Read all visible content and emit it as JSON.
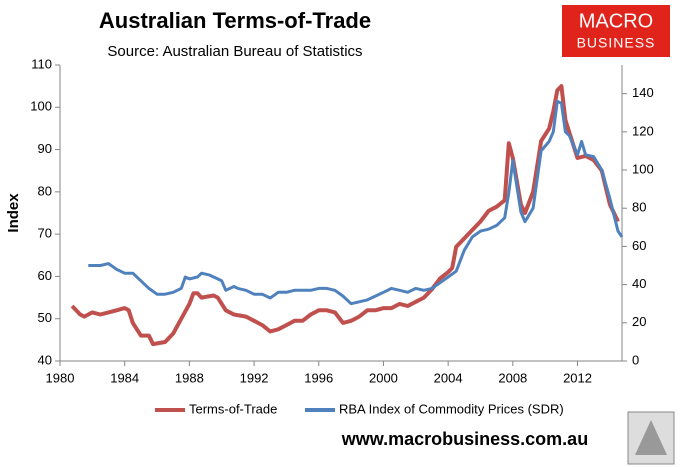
{
  "chart_data": {
    "type": "line",
    "title": "Australian Terms-of-Trade",
    "subtitle": "Source: Australian Bureau of Statistics",
    "ylabel": "Index",
    "logo": [
      "MACRO",
      "BUSINESS"
    ],
    "footer": "www.macrobusiness.com.au",
    "xlim": [
      1980,
      2014.75
    ],
    "xticks": [
      1980,
      1984,
      1988,
      1992,
      1996,
      2000,
      2004,
      2008,
      2012
    ],
    "ylim": [
      40,
      110
    ],
    "yticks": [
      40,
      50,
      60,
      70,
      80,
      90,
      100,
      110
    ],
    "y2lim": [
      0,
      155
    ],
    "y2ticks": [
      0,
      20,
      40,
      60,
      80,
      100,
      120,
      140
    ],
    "legend": "bottom",
    "series": [
      {
        "name": "Terms-of-Trade",
        "color": "#c0504d",
        "x": [
          1980.75,
          1981.25,
          1981.5,
          1982,
          1982.5,
          1983,
          1983.5,
          1984,
          1984.25,
          1984.5,
          1985,
          1985.5,
          1985.75,
          1986.5,
          1987,
          1987.5,
          1988,
          1988.25,
          1988.5,
          1988.75,
          1989.5,
          1989.75,
          1990.25,
          1990.75,
          1991.5,
          1992,
          1992.5,
          1993,
          1993.5,
          1994,
          1994.5,
          1995,
          1995.5,
          1996,
          1996.5,
          1997,
          1997.5,
          1998,
          1998.5,
          1999,
          1999.5,
          2000,
          2000.5,
          2001,
          2001.5,
          2002,
          2002.5,
          2003,
          2003.5,
          2004,
          2004.25,
          2004.5,
          2005,
          2005.5,
          2006,
          2006.5,
          2007,
          2007.5,
          2007.75,
          2008,
          2008.5,
          2008.75,
          2009.25,
          2009.75,
          2010.25,
          2010.5,
          2010.75,
          2011,
          2011.25,
          2011.5,
          2012,
          2012.5,
          2013,
          2013.5,
          2014,
          2014.5
        ],
        "values": [
          53,
          51,
          50.5,
          51.5,
          51,
          51.5,
          52,
          52.5,
          52,
          49,
          46,
          46,
          44,
          44.5,
          46.5,
          50,
          53.5,
          56,
          56,
          55,
          55.5,
          55,
          52,
          51,
          50.5,
          49.5,
          48.5,
          47,
          47.5,
          48.5,
          49.5,
          49.5,
          51,
          52,
          52,
          51.5,
          49,
          49.5,
          50.5,
          52,
          52,
          52.5,
          52.5,
          53.5,
          53,
          54,
          55,
          57,
          59.5,
          61,
          62,
          67,
          69,
          71,
          73,
          75.5,
          76.5,
          78,
          91.5,
          88,
          77,
          75,
          80,
          92,
          95,
          99,
          104,
          105,
          97,
          94,
          88,
          88.5,
          87.5,
          85,
          77,
          73
        ]
      },
      {
        "name": "RBA Index of Commodity Prices (SDR)",
        "color": "#4f81bd",
        "axis": "y2",
        "x": [
          1981.75,
          1982.5,
          1983,
          1983.5,
          1984,
          1984.5,
          1985,
          1985.5,
          1986,
          1986.5,
          1987,
          1987.5,
          1987.75,
          1988,
          1988.5,
          1988.75,
          1989.25,
          1989.75,
          1990,
          1990.25,
          1990.75,
          1991,
          1991.5,
          1992,
          1992.5,
          1993,
          1993.5,
          1994,
          1994.5,
          1995,
          1995.5,
          1996,
          1996.5,
          1997,
          1997.5,
          1998,
          1998.5,
          1999,
          1999.5,
          2000,
          2000.5,
          2001,
          2001.5,
          2002,
          2002.5,
          2003,
          2003.5,
          2004,
          2004.5,
          2005,
          2005.5,
          2006,
          2006.5,
          2007,
          2007.5,
          2007.75,
          2008,
          2008.5,
          2008.75,
          2009.25,
          2009.75,
          2010.25,
          2010.5,
          2010.75,
          2011,
          2011.25,
          2011.5,
          2012,
          2012.25,
          2012.5,
          2013,
          2013.5,
          2014,
          2014.5,
          2014.75
        ],
        "values": [
          50,
          50,
          51,
          48,
          46,
          46,
          42,
          38,
          35,
          35,
          36,
          38,
          44,
          43,
          44,
          46,
          45,
          43,
          42,
          37,
          39,
          38,
          37,
          35,
          35,
          33,
          36,
          36,
          37,
          37,
          37,
          38,
          38,
          37,
          34,
          30,
          31,
          32,
          34,
          36,
          38,
          37,
          36,
          38,
          37,
          38,
          41,
          44,
          47,
          58,
          65,
          68,
          69,
          71,
          75,
          88,
          105,
          78,
          73,
          80,
          110,
          115,
          120,
          136,
          135,
          120,
          118,
          108,
          115,
          108,
          107,
          100,
          85,
          68,
          65
        ]
      }
    ]
  }
}
